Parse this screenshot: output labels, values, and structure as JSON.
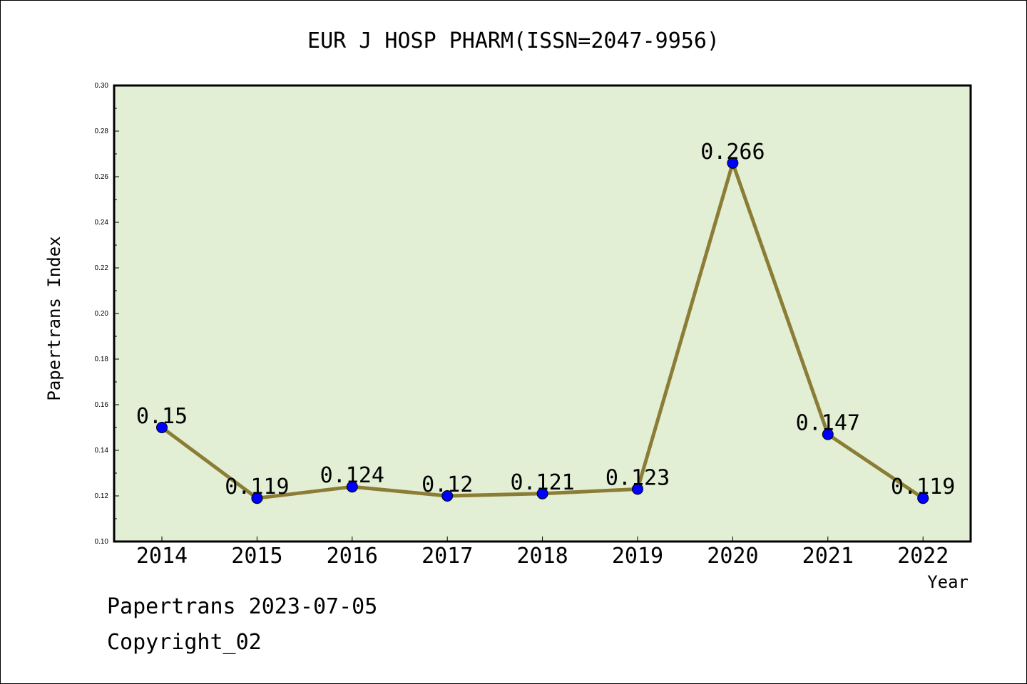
{
  "title": "EUR J HOSP PHARM(ISSN=2047-9956)",
  "footer": {
    "line1": "Papertrans 2023-07-05",
    "line2": "Copyright_02"
  },
  "colors": {
    "plot_bg": "#e2efd5",
    "line": "#8b7d35",
    "marker": "#0000ff"
  },
  "chart_data": {
    "type": "line",
    "title": "EUR J HOSP PHARM(ISSN=2047-9956)",
    "xlabel": "Year",
    "ylabel": "Papertrans Index",
    "categories": [
      "2014",
      "2015",
      "2016",
      "2017",
      "2018",
      "2019",
      "2020",
      "2021",
      "2022"
    ],
    "values": [
      0.15,
      0.119,
      0.124,
      0.12,
      0.121,
      0.123,
      0.266,
      0.147,
      0.119
    ],
    "data_labels": [
      "0.15",
      "0.119",
      "0.124",
      "0.12",
      "0.121",
      "0.123",
      "0.266",
      "0.147",
      "0.119"
    ],
    "ylim": [
      0.1,
      0.3
    ],
    "yticks": [
      "0.10",
      "0.12",
      "0.14",
      "0.16",
      "0.18",
      "0.20",
      "0.22",
      "0.24",
      "0.26",
      "0.28",
      "0.30"
    ],
    "grid": false,
    "legend": "none"
  }
}
